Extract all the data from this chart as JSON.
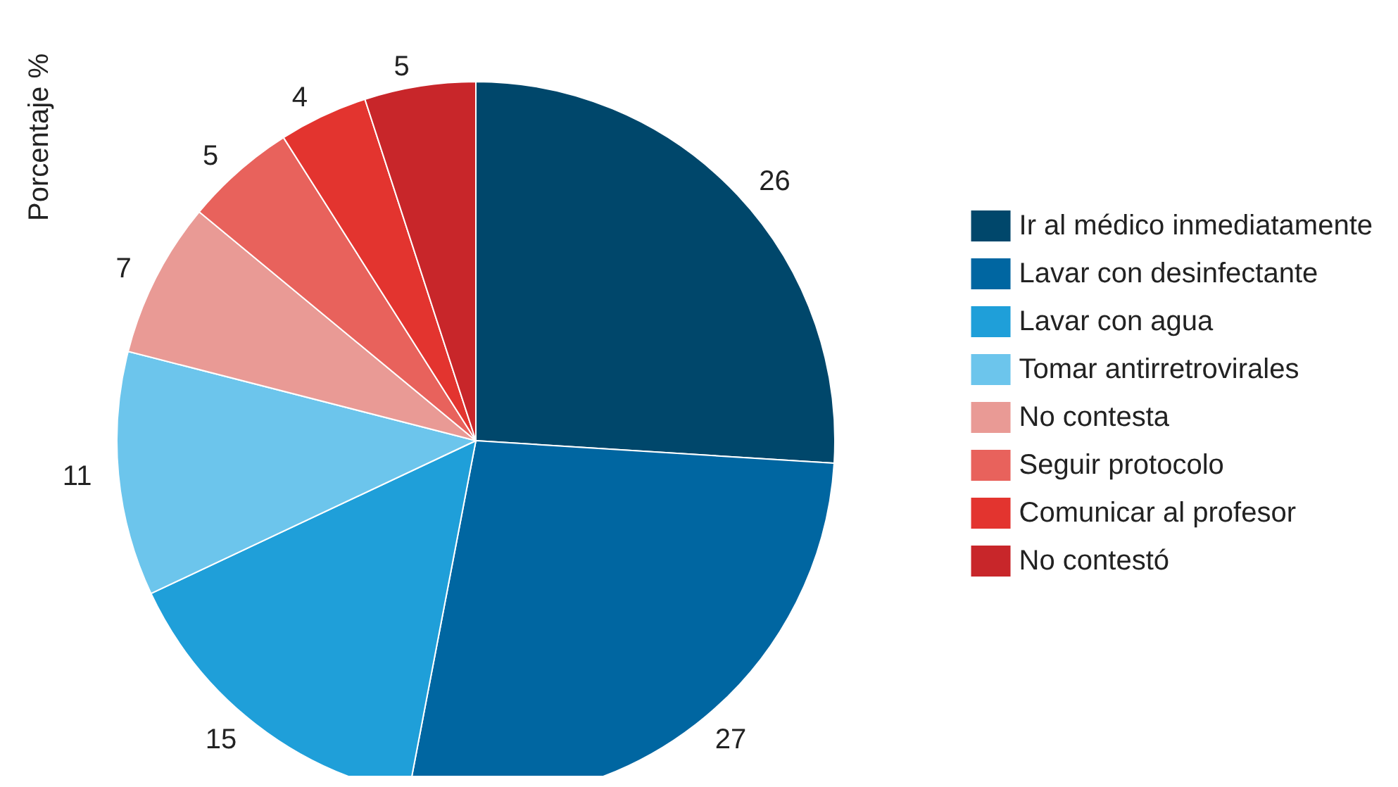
{
  "chart_data": {
    "type": "pie",
    "ylabel": "Porcentaje %",
    "categories": [
      "Ir al médico inmediatamente",
      "Lavar con desinfectante",
      "Lavar con agua",
      "Tomar antirretrovirales",
      "No contesta",
      "Seguir protocolo",
      "Comunicar al profesor",
      "No contestó"
    ],
    "values": [
      26,
      27,
      15,
      11,
      7,
      5,
      4,
      5
    ],
    "colors": [
      "#00476b",
      "#0066a1",
      "#1f9fd9",
      "#6cc5ec",
      "#e99a95",
      "#e8625c",
      "#e3342f",
      "#c8262a"
    ],
    "data_labels": true,
    "legend": "right"
  }
}
